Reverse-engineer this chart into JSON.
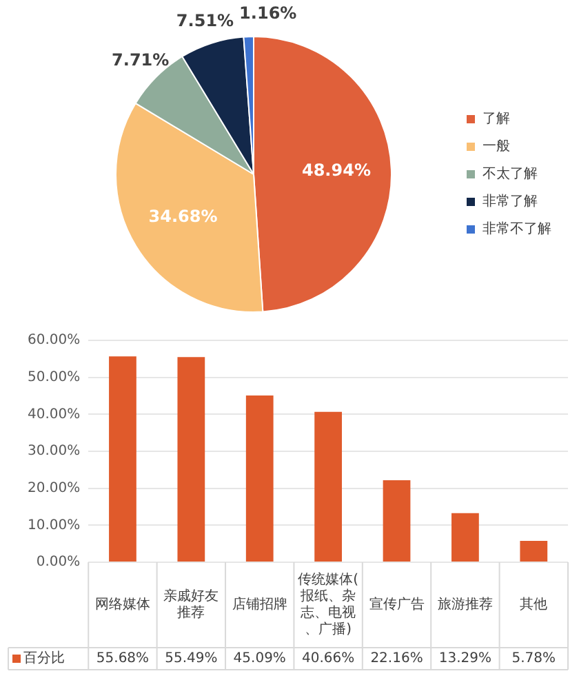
{
  "chart_data": [
    {
      "type": "pie",
      "categories": [
        "了解",
        "一般",
        "不太了解",
        "非常了解",
        "非常不了解"
      ],
      "values": [
        48.94,
        34.68,
        7.71,
        7.51,
        1.16
      ],
      "colors": [
        "#e0603a",
        "#f9bf74",
        "#8fac9a",
        "#13284a",
        "#3e73d0"
      ],
      "value_labels": [
        "48.94%",
        "34.68%",
        "7.71%",
        "7.51%",
        "1.16%"
      ],
      "legend": "right"
    },
    {
      "type": "bar",
      "categories": [
        "网络媒体",
        "亲戚好友推荐",
        "店铺招牌",
        "传统媒体(报纸、杂志、电视、广播)",
        "宣传广告",
        "旅游推荐",
        "其他"
      ],
      "series": [
        {
          "name": "百分比",
          "color": "#e05a2b",
          "values": [
            55.68,
            55.49,
            45.09,
            40.66,
            22.16,
            13.29,
            5.78
          ]
        }
      ],
      "value_labels": [
        "55.68%",
        "55.49%",
        "45.09%",
        "40.66%",
        "22.16%",
        "13.29%",
        "5.78%"
      ],
      "ylim": [
        0,
        60
      ],
      "yticks": [
        {
          "value": 0,
          "label": "0.00%"
        },
        {
          "value": 10,
          "label": "10.00%"
        },
        {
          "value": 20,
          "label": "20.00%"
        },
        {
          "value": 30,
          "label": "30.00%"
        },
        {
          "value": 40,
          "label": "40.00%"
        },
        {
          "value": 50,
          "label": "50.00%"
        },
        {
          "value": 60,
          "label": "60.00%"
        }
      ],
      "grid": "y",
      "legend": "bottom"
    }
  ]
}
